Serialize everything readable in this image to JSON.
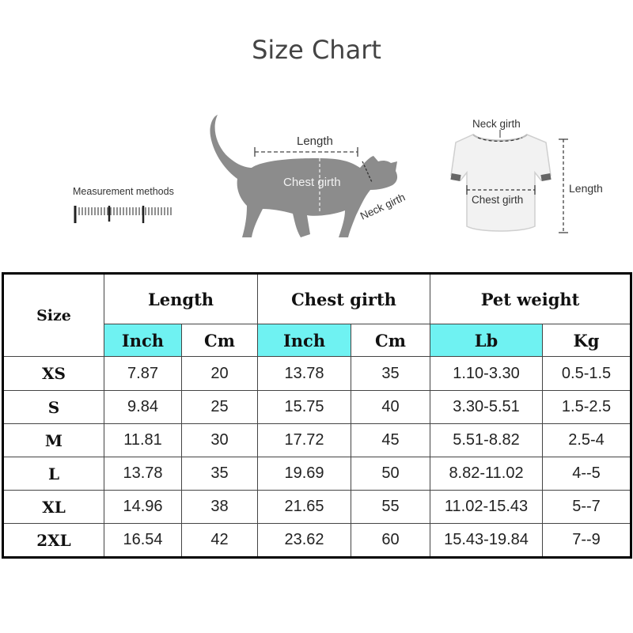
{
  "title": "Size Chart",
  "illustration": {
    "measurement_methods_label": "Measurement methods",
    "cat_length_label": "Length",
    "cat_chest_label": "Chest girth",
    "cat_neck_label": "Neck girth",
    "shirt_neck_label": "Neck girth",
    "shirt_chest_label": "Chest girth",
    "shirt_length_label": "Length"
  },
  "table": {
    "size_header": "Size",
    "groups": [
      "Length",
      "Chest girth",
      "Pet weight"
    ],
    "units": [
      "Inch",
      "Cm",
      "Inch",
      "Cm",
      "Lb",
      "Kg"
    ],
    "rows": [
      {
        "size": "XS",
        "len_in": "7.87",
        "len_cm": "20",
        "chest_in": "13.78",
        "chest_cm": "35",
        "lb": "1.10-3.30",
        "kg": "0.5-1.5"
      },
      {
        "size": "S",
        "len_in": "9.84",
        "len_cm": "25",
        "chest_in": "15.75",
        "chest_cm": "40",
        "lb": "3.30-5.51",
        "kg": "1.5-2.5"
      },
      {
        "size": "M",
        "len_in": "11.81",
        "len_cm": "30",
        "chest_in": "17.72",
        "chest_cm": "45",
        "lb": "5.51-8.82",
        "kg": "2.5-4"
      },
      {
        "size": "L",
        "len_in": "13.78",
        "len_cm": "35",
        "chest_in": "19.69",
        "chest_cm": "50",
        "lb": "8.82-11.02",
        "kg": "4--5"
      },
      {
        "size": "XL",
        "len_in": "14.96",
        "len_cm": "38",
        "chest_in": "21.65",
        "chest_cm": "55",
        "lb": "11.02-15.43",
        "kg": "5--7"
      },
      {
        "size": "2XL",
        "len_in": "16.54",
        "len_cm": "42",
        "chest_in": "23.62",
        "chest_cm": "60",
        "lb": "15.43-19.84",
        "kg": "7--9"
      }
    ]
  },
  "colors": {
    "unit_header_bg": "#6ff2f2",
    "silhouette": "#8c8c8c"
  }
}
